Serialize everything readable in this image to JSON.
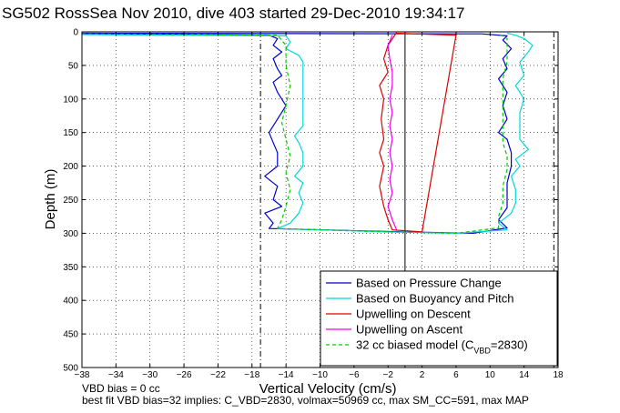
{
  "title": "SG502 RossSea Nov 2010, dive 403 started 29-Dec-2010 19:34:17",
  "footer": {
    "line1": "VBD bias = 0 cc",
    "line2": "best fit VBD bias=32 implies: C_VBD=2830, volmax=50969 cc, max SM_CC=591, max MAP"
  },
  "chart_data": {
    "type": "line",
    "title": "SG502 RossSea Nov 2010, dive 403 started 29-Dec-2010 19:34:17",
    "xlabel": "Vertical Velocity (cm/s)",
    "ylabel": "Depth (m)",
    "xlim": [
      -38,
      18
    ],
    "ylim": [
      500,
      0
    ],
    "y_reversed": true,
    "grid": true,
    "x_ticks": [
      -38,
      -34,
      -30,
      -26,
      -22,
      -18,
      -14,
      -10,
      -6,
      -2,
      2,
      6,
      10,
      14,
      18
    ],
    "x_tick_labels": [
      "−38",
      "−34",
      "−30",
      "−26",
      "−22",
      "−18",
      "−14",
      "−10",
      "−6",
      "−2",
      "2",
      "6",
      "10",
      "14",
      "18"
    ],
    "y_ticks": [
      0,
      50,
      100,
      150,
      200,
      250,
      300,
      350,
      400,
      450,
      500
    ],
    "y_tick_labels": [
      "0",
      "50",
      "100",
      "150",
      "200",
      "250",
      "300",
      "350",
      "400",
      "450",
      "500"
    ],
    "legend_position": "bottom-right",
    "reference_lines": {
      "zero_line_x": 0,
      "dashdot_x": [
        -17,
        17.5
      ]
    },
    "series": [
      {
        "name": "Based on Pressure Change",
        "color": "#0000cc",
        "style": "solid",
        "points": [
          [
            -38,
            3
          ],
          [
            -16,
            5
          ],
          [
            -15,
            10
          ],
          [
            -15.5,
            20
          ],
          [
            -14.5,
            30
          ],
          [
            -15.5,
            40
          ],
          [
            -15,
            55
          ],
          [
            -14.5,
            65
          ],
          [
            -15.5,
            75
          ],
          [
            -15,
            90
          ],
          [
            -14,
            110
          ],
          [
            -15,
            130
          ],
          [
            -16,
            150
          ],
          [
            -15.5,
            165
          ],
          [
            -15,
            180
          ],
          [
            -15,
            200
          ],
          [
            -16.5,
            215
          ],
          [
            -15,
            230
          ],
          [
            -15.5,
            250
          ],
          [
            -14.5,
            260
          ],
          [
            -16.5,
            270
          ],
          [
            -15.5,
            285
          ],
          [
            -16,
            293
          ],
          [
            0,
            298
          ],
          [
            8,
            300
          ],
          [
            12,
            292
          ],
          [
            11,
            280
          ],
          [
            12,
            262
          ],
          [
            12,
            245
          ],
          [
            12,
            225
          ],
          [
            12.5,
            200
          ],
          [
            12.5,
            180
          ],
          [
            12,
            160
          ],
          [
            11,
            150
          ],
          [
            12,
            130
          ],
          [
            11.5,
            110
          ],
          [
            12,
            90
          ],
          [
            11,
            70
          ],
          [
            12,
            55
          ],
          [
            11.5,
            40
          ],
          [
            12.5,
            25
          ],
          [
            11.5,
            12
          ],
          [
            12,
            6
          ],
          [
            9,
            3
          ],
          [
            -38,
            2
          ]
        ]
      },
      {
        "name": "Based on Buoyancy and Pitch",
        "color": "#00d8d8",
        "style": "solid",
        "points": [
          [
            -38,
            4
          ],
          [
            -14,
            6
          ],
          [
            -13.5,
            15
          ],
          [
            -14,
            25
          ],
          [
            -12.5,
            35
          ],
          [
            -12,
            45
          ],
          [
            -12,
            60
          ],
          [
            -12,
            80
          ],
          [
            -12,
            100
          ],
          [
            -12,
            120
          ],
          [
            -12,
            140
          ],
          [
            -13,
            155
          ],
          [
            -12.5,
            165
          ],
          [
            -12,
            180
          ],
          [
            -12,
            200
          ],
          [
            -13,
            215
          ],
          [
            -12,
            225
          ],
          [
            -12.5,
            240
          ],
          [
            -12,
            255
          ],
          [
            -12.5,
            270
          ],
          [
            -13.5,
            285
          ],
          [
            -15,
            293
          ],
          [
            -2,
            298
          ],
          [
            6,
            300
          ],
          [
            12,
            295
          ],
          [
            11,
            285
          ],
          [
            12.5,
            270
          ],
          [
            13,
            255
          ],
          [
            13,
            235
          ],
          [
            12.5,
            215
          ],
          [
            13.5,
            200
          ],
          [
            13,
            190
          ],
          [
            14.5,
            175
          ],
          [
            13.5,
            160
          ],
          [
            13.5,
            140
          ],
          [
            13.5,
            120
          ],
          [
            14,
            100
          ],
          [
            13,
            80
          ],
          [
            14,
            65
          ],
          [
            13.5,
            45
          ],
          [
            14.5,
            30
          ],
          [
            15,
            20
          ],
          [
            14,
            10
          ],
          [
            13,
            5
          ],
          [
            12,
            2
          ]
        ]
      },
      {
        "name": "Upwelling on Descent",
        "color": "#dd0000",
        "style": "solid",
        "points": [
          [
            -1,
            1
          ],
          [
            -2,
            20
          ],
          [
            -2.5,
            40
          ],
          [
            -2,
            60
          ],
          [
            -3,
            80
          ],
          [
            -2.5,
            100
          ],
          [
            -2.8,
            130
          ],
          [
            -2.5,
            160
          ],
          [
            -3,
            180
          ],
          [
            -2.5,
            200
          ],
          [
            -3,
            230
          ],
          [
            -2.5,
            260
          ],
          [
            -2,
            280
          ],
          [
            -1.5,
            295
          ],
          [
            2,
            298
          ],
          [
            6,
            5
          ],
          [
            -1,
            2
          ]
        ]
      },
      {
        "name": "Upwelling on Ascent",
        "color": "#ee00ee",
        "style": "solid",
        "points": [
          [
            -1,
            295
          ],
          [
            -1.5,
            280
          ],
          [
            -2,
            260
          ],
          [
            -1.5,
            240
          ],
          [
            -1.8,
            220
          ],
          [
            -1.5,
            200
          ],
          [
            -1.8,
            180
          ],
          [
            -1.5,
            160
          ],
          [
            -1.8,
            140
          ],
          [
            -1.5,
            120
          ],
          [
            -1.8,
            100
          ],
          [
            -1.5,
            80
          ],
          [
            -1.5,
            60
          ],
          [
            -1.8,
            40
          ],
          [
            -2,
            20
          ],
          [
            -1.5,
            5
          ]
        ]
      },
      {
        "name": "32 cc biased model (C_VBD=2830)",
        "color": "#00cc00",
        "style": "dashed",
        "points": [
          [
            -38,
            3
          ],
          [
            -15,
            5
          ],
          [
            -14,
            20
          ],
          [
            -14,
            50
          ],
          [
            -13.5,
            80
          ],
          [
            -14,
            110
          ],
          [
            -14.5,
            135
          ],
          [
            -14,
            160
          ],
          [
            -13.5,
            185
          ],
          [
            -14,
            210
          ],
          [
            -13.5,
            235
          ],
          [
            -14,
            260
          ],
          [
            -14.5,
            280
          ],
          [
            -15,
            293
          ],
          [
            -2,
            298
          ],
          [
            6,
            300
          ],
          [
            11,
            292
          ],
          [
            11,
            275
          ],
          [
            11.5,
            255
          ],
          [
            11.5,
            230
          ],
          [
            12,
            205
          ],
          [
            12,
            185
          ],
          [
            11.5,
            165
          ],
          [
            11.5,
            145
          ],
          [
            11.5,
            120
          ],
          [
            11.5,
            95
          ],
          [
            11.5,
            70
          ],
          [
            12,
            45
          ],
          [
            12,
            25
          ],
          [
            12,
            10
          ],
          [
            11,
            3
          ]
        ]
      }
    ]
  },
  "legend": {
    "items": [
      {
        "label": "Based on Pressure Change",
        "color": "#0000cc",
        "style": "solid"
      },
      {
        "label": "Based on Buoyancy and Pitch",
        "color": "#00d8d8",
        "style": "solid"
      },
      {
        "label": "Upwelling on Descent",
        "color": "#dd0000",
        "style": "solid"
      },
      {
        "label": "Upwelling on Ascent",
        "color": "#ee00ee",
        "style": "solid"
      },
      {
        "label": "32 cc biased model (C",
        "sub": "VBD",
        "after": "=2830)",
        "color": "#00cc00",
        "style": "dashed"
      }
    ]
  }
}
